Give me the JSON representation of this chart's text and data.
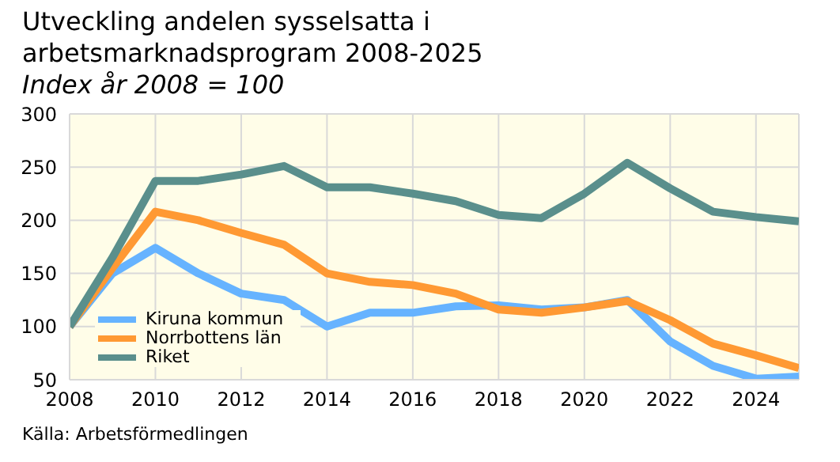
{
  "chart_data": {
    "type": "line",
    "title": "Utveckling andelen sysselsatta i arbetsmarknadsprogram 2008-2025",
    "subtitle": "Index år 2008 = 100",
    "annotations": [
      "Källa: Arbetsförmedlingen"
    ],
    "x": [
      2008,
      2009,
      2010,
      2011,
      2012,
      2013,
      2014,
      2015,
      2016,
      2017,
      2018,
      2019,
      2020,
      2021,
      2022,
      2023,
      2024,
      2025
    ],
    "series": [
      {
        "name": "Kiruna kommun",
        "color": "#66b3ff",
        "values": [
          100,
          150,
          174,
          150,
          131,
          125,
          100,
          113,
          113,
          119,
          120,
          116,
          118,
          125,
          86,
          63,
          51,
          53
        ]
      },
      {
        "name": "Norrbottens län",
        "color": "#ff9933",
        "values": [
          100,
          155,
          208,
          200,
          188,
          177,
          150,
          142,
          139,
          131,
          116,
          113,
          118,
          124,
          106,
          84,
          73,
          61
        ]
      },
      {
        "name": "Riket",
        "color": "#5a8f8c",
        "values": [
          100,
          165,
          237,
          237,
          243,
          251,
          231,
          231,
          225,
          218,
          205,
          202,
          225,
          254,
          230,
          208,
          203,
          199
        ]
      }
    ],
    "xlim": [
      2008,
      2025
    ],
    "xticks": [
      2008,
      2010,
      2012,
      2014,
      2016,
      2018,
      2020,
      2022,
      2024
    ],
    "ylim": [
      50,
      300
    ],
    "yticks": [
      50,
      100,
      150,
      200,
      250,
      300
    ],
    "grid": true,
    "legend": "bottom left",
    "marker": "none",
    "line_style": "solid"
  }
}
